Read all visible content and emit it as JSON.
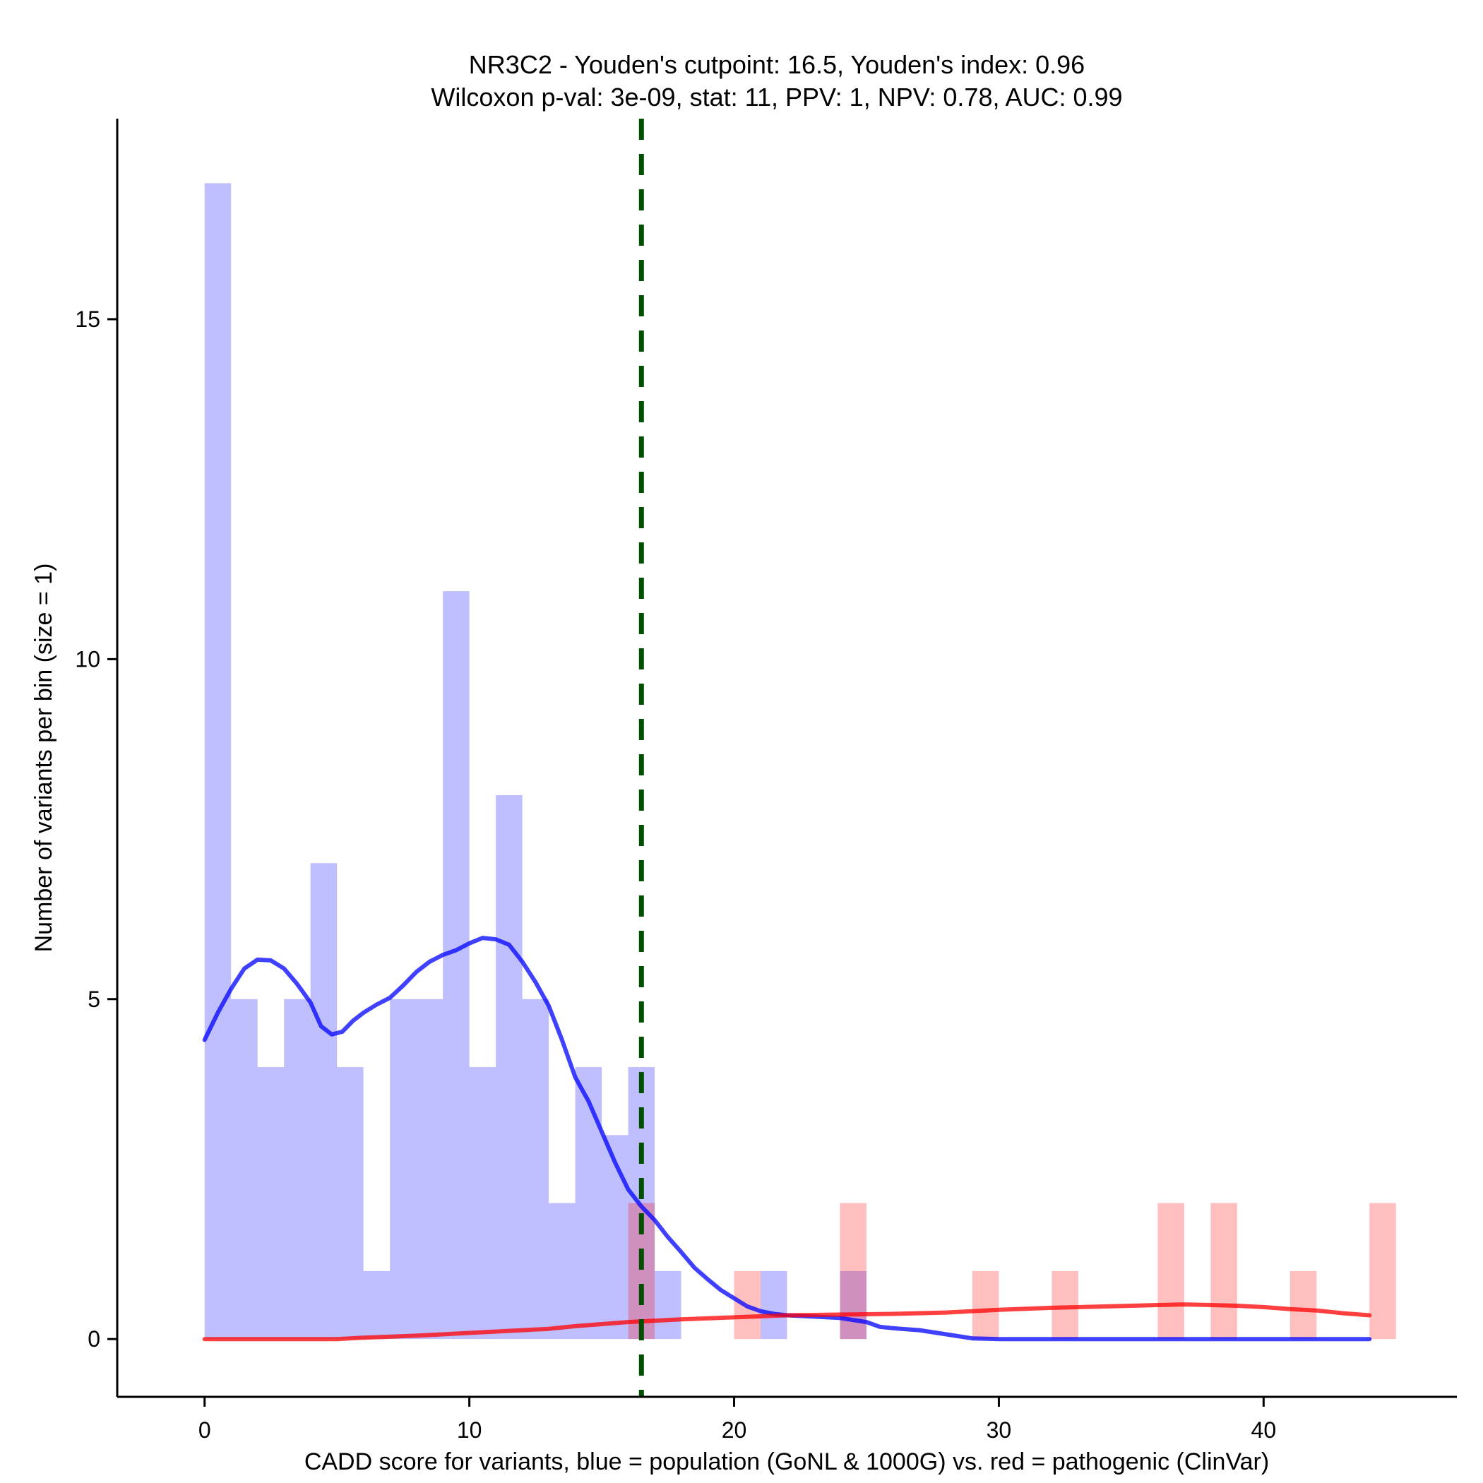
{
  "chart_data": {
    "type": "bar",
    "title": "NR3C2 - Youden's cutpoint: 16.5, Youden's index: 0.96",
    "subtitle": "Wilcoxon p-val: 3e-09, stat: 11, PPV: 1, NPV: 0.78, AUC: 0.99",
    "xlabel": "CADD score for variants, blue = population (GoNL & 1000G) vs. red = pathogenic (ClinVar)",
    "ylabel": "Number of variants per bin (size = 1)",
    "xlim": [
      -3.3,
      47.3
    ],
    "ylim": [
      -0.85,
      17.95
    ],
    "xticks": [
      0,
      10,
      20,
      30,
      40
    ],
    "yticks": [
      0,
      5,
      10,
      15
    ],
    "bin_width": 1,
    "cutpoint": 16.5,
    "colors": {
      "population": "#0000ff",
      "pathogenic": "#ff0000",
      "cutpoint": "#005000"
    },
    "series": [
      {
        "name": "population (GoNL & 1000G)",
        "color": "#0000ff",
        "bins": [
          {
            "x0": 0,
            "count": 17
          },
          {
            "x0": 1,
            "count": 5
          },
          {
            "x0": 2,
            "count": 4
          },
          {
            "x0": 3,
            "count": 5
          },
          {
            "x0": 4,
            "count": 7
          },
          {
            "x0": 5,
            "count": 4
          },
          {
            "x0": 6,
            "count": 1
          },
          {
            "x0": 7,
            "count": 5
          },
          {
            "x0": 8,
            "count": 5
          },
          {
            "x0": 9,
            "count": 11
          },
          {
            "x0": 10,
            "count": 4
          },
          {
            "x0": 11,
            "count": 8
          },
          {
            "x0": 12,
            "count": 5
          },
          {
            "x0": 13,
            "count": 2
          },
          {
            "x0": 14,
            "count": 4
          },
          {
            "x0": 15,
            "count": 3
          },
          {
            "x0": 16,
            "count": 4
          },
          {
            "x0": 17,
            "count": 1
          },
          {
            "x0": 21,
            "count": 1
          },
          {
            "x0": 24,
            "count": 1
          }
        ]
      },
      {
        "name": "pathogenic (ClinVar)",
        "color": "#ff0000",
        "bins": [
          {
            "x0": 16,
            "count": 2
          },
          {
            "x0": 20,
            "count": 1
          },
          {
            "x0": 24,
            "count": 2
          },
          {
            "x0": 29,
            "count": 1
          },
          {
            "x0": 32,
            "count": 1
          },
          {
            "x0": 36,
            "count": 2
          },
          {
            "x0": 38,
            "count": 2
          },
          {
            "x0": 41,
            "count": 1
          },
          {
            "x0": 44,
            "count": 2
          }
        ]
      }
    ],
    "density": [
      {
        "name": "population (GoNL & 1000G)",
        "color": "#0000ff",
        "points": [
          [
            0,
            4.4
          ],
          [
            0.5,
            4.8
          ],
          [
            1,
            5.15
          ],
          [
            1.5,
            5.45
          ],
          [
            2,
            5.58
          ],
          [
            2.5,
            5.57
          ],
          [
            3,
            5.45
          ],
          [
            3.5,
            5.22
          ],
          [
            4,
            4.95
          ],
          [
            4.4,
            4.6
          ],
          [
            4.8,
            4.48
          ],
          [
            5.2,
            4.52
          ],
          [
            5.6,
            4.68
          ],
          [
            6,
            4.8
          ],
          [
            6.5,
            4.92
          ],
          [
            7,
            5.02
          ],
          [
            7.5,
            5.2
          ],
          [
            8,
            5.4
          ],
          [
            8.5,
            5.55
          ],
          [
            9,
            5.65
          ],
          [
            9.5,
            5.72
          ],
          [
            10,
            5.82
          ],
          [
            10.5,
            5.9
          ],
          [
            11,
            5.88
          ],
          [
            11.5,
            5.8
          ],
          [
            12,
            5.55
          ],
          [
            12.5,
            5.25
          ],
          [
            13,
            4.9
          ],
          [
            13.5,
            4.4
          ],
          [
            14,
            3.85
          ],
          [
            14.5,
            3.5
          ],
          [
            15,
            3.05
          ],
          [
            15.5,
            2.6
          ],
          [
            16,
            2.2
          ],
          [
            16.5,
            1.95
          ],
          [
            17,
            1.75
          ],
          [
            17.5,
            1.5
          ],
          [
            18,
            1.28
          ],
          [
            18.5,
            1.05
          ],
          [
            19,
            0.88
          ],
          [
            19.5,
            0.72
          ],
          [
            20,
            0.6
          ],
          [
            20.5,
            0.48
          ],
          [
            21,
            0.41
          ],
          [
            21.5,
            0.37
          ],
          [
            22,
            0.35
          ],
          [
            23,
            0.33
          ],
          [
            24,
            0.31
          ],
          [
            25,
            0.25
          ],
          [
            25.5,
            0.18
          ],
          [
            26,
            0.16
          ],
          [
            27,
            0.13
          ],
          [
            28,
            0.07
          ],
          [
            29,
            0.01
          ],
          [
            30,
            0
          ],
          [
            35,
            0
          ],
          [
            40,
            0
          ],
          [
            44,
            0
          ]
        ]
      },
      {
        "name": "pathogenic (ClinVar)",
        "color": "#ff0000",
        "points": [
          [
            0,
            0
          ],
          [
            5,
            0
          ],
          [
            6,
            0.02
          ],
          [
            8,
            0.05
          ],
          [
            10,
            0.09
          ],
          [
            12,
            0.13
          ],
          [
            13,
            0.15
          ],
          [
            14,
            0.19
          ],
          [
            15,
            0.22
          ],
          [
            16,
            0.25
          ],
          [
            18,
            0.29
          ],
          [
            20,
            0.32
          ],
          [
            22,
            0.35
          ],
          [
            24,
            0.36
          ],
          [
            26,
            0.37
          ],
          [
            28,
            0.39
          ],
          [
            30,
            0.43
          ],
          [
            32,
            0.46
          ],
          [
            34,
            0.48
          ],
          [
            36,
            0.5
          ],
          [
            37,
            0.51
          ],
          [
            38,
            0.5
          ],
          [
            39,
            0.49
          ],
          [
            40,
            0.47
          ],
          [
            41,
            0.44
          ],
          [
            42,
            0.42
          ],
          [
            43,
            0.38
          ],
          [
            44,
            0.35
          ]
        ]
      }
    ]
  }
}
